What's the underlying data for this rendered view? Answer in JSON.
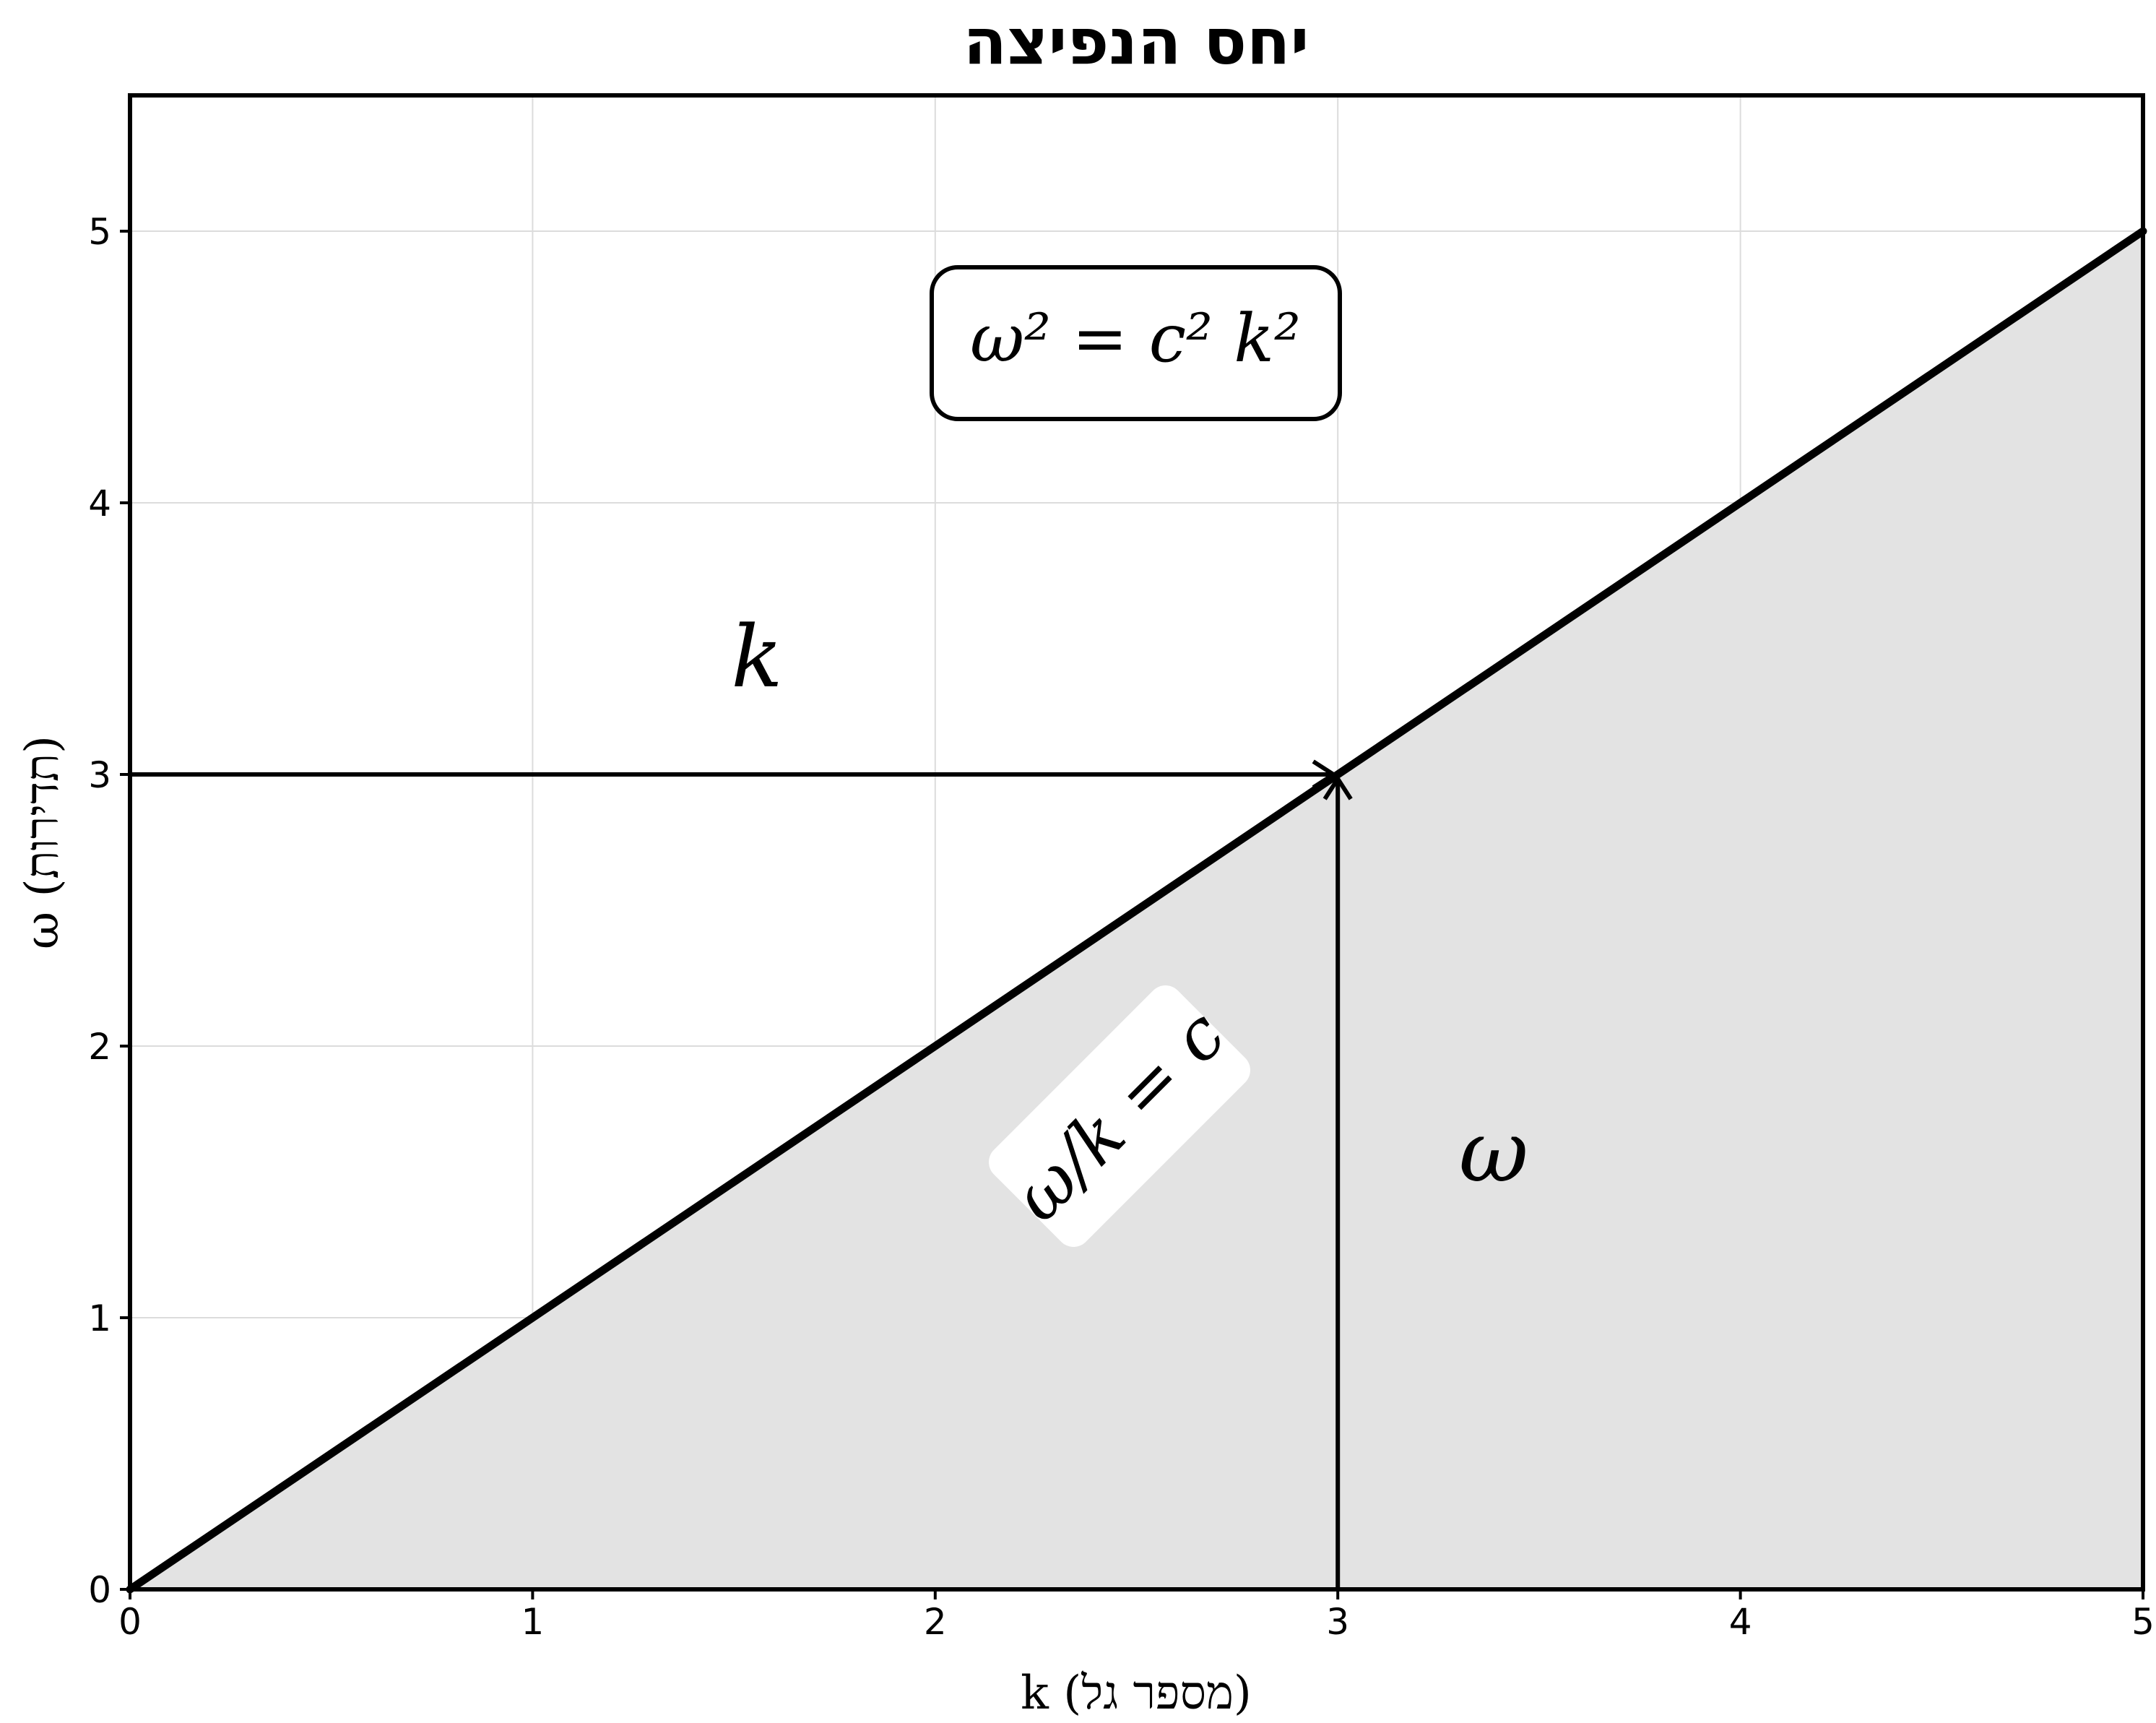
{
  "chart_data": {
    "type": "line",
    "title": "יחס הנפיצה",
    "xlabel": "k (מספר גל)",
    "ylabel": "ω (תדירות)",
    "xlim": [
      0,
      5
    ],
    "ylim": [
      0,
      5.5
    ],
    "x_ticks": [
      "0",
      "1",
      "2",
      "3",
      "4",
      "5"
    ],
    "y_ticks": [
      "0",
      "1",
      "2",
      "3",
      "4",
      "5"
    ],
    "grid": true,
    "series": [
      {
        "x": [
          0,
          5
        ],
        "y": [
          0,
          5
        ],
        "color": "#000000"
      }
    ],
    "fill_under_line": "#e3e3e3",
    "marker_point": {
      "x": 3,
      "y": 3
    },
    "annotations": {
      "equation_box": "ω² = c² k²",
      "horizontal_arrow_label": "k",
      "vertical_arrow_label": "ω",
      "slope_label": "ω/k = c"
    }
  }
}
